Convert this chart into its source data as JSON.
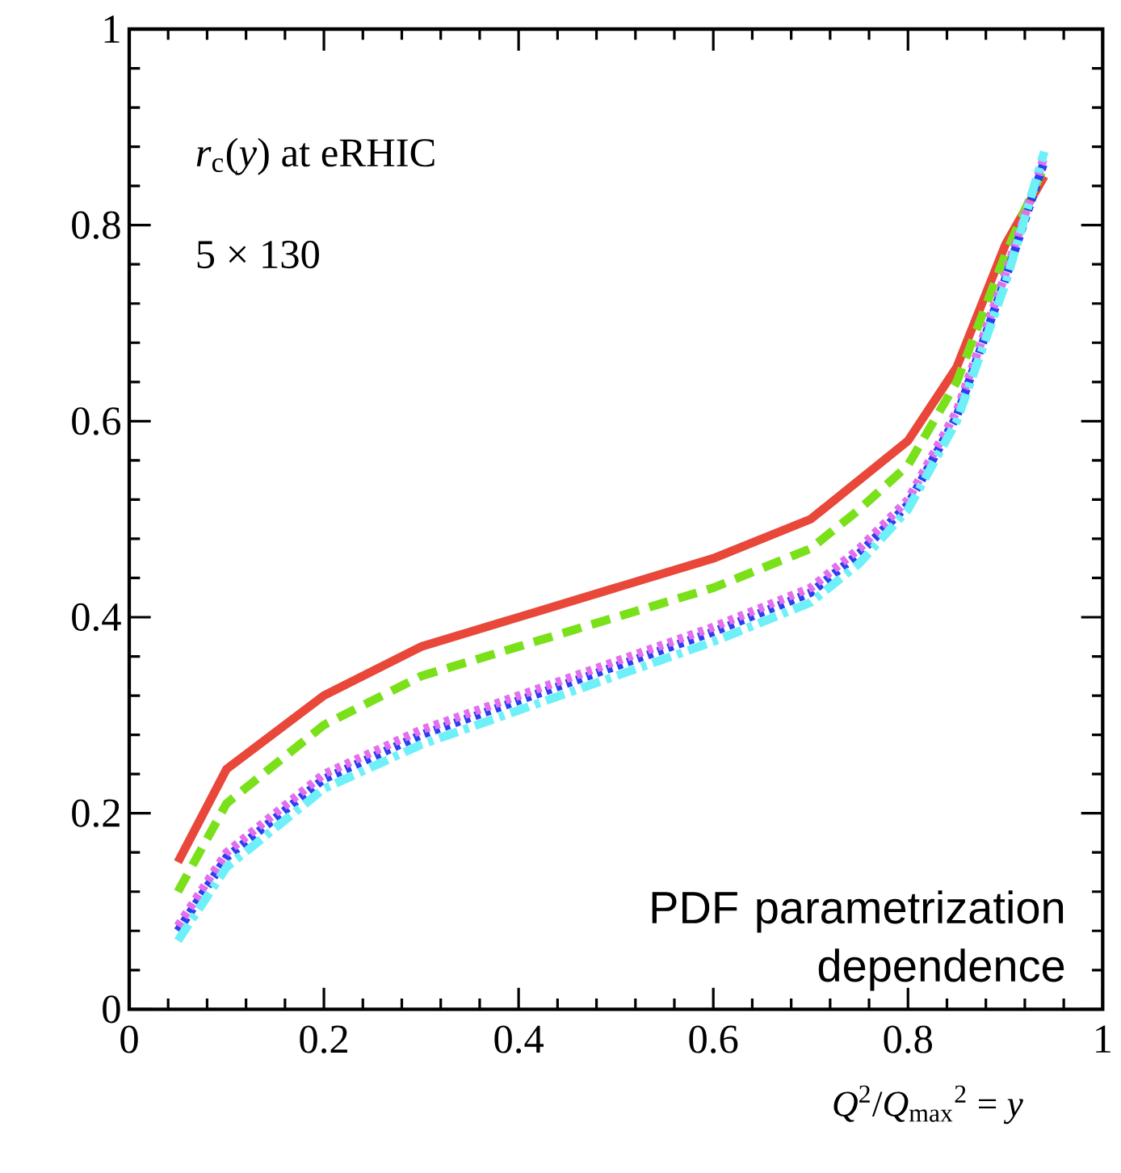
{
  "chart_data": {
    "type": "line",
    "xlabel": "*Q*$^{2}$/*Q*$_{max}$$^{2}$ = *y*",
    "annotations": [
      "*r*$_{c}$(*y*) at eRHIC",
      "5 × 130",
      "PDF parametrization dependence"
    ],
    "x": [
      0.05,
      0.1,
      0.2,
      0.3,
      0.4,
      0.5,
      0.6,
      0.7,
      0.75,
      0.8,
      0.85,
      0.9,
      0.94
    ],
    "xlim": [
      0,
      1
    ],
    "ylim": [
      0,
      1
    ],
    "xticks": [
      0,
      0.2,
      0.4,
      0.6,
      0.8,
      1
    ],
    "yticks": [
      0,
      0.2,
      0.4,
      0.6,
      0.8,
      1
    ],
    "series": [
      {
        "color": "#e8473a",
        "line_style": "solid",
        "values": [
          0.15,
          0.245,
          0.32,
          0.37,
          0.4,
          0.43,
          0.46,
          0.5,
          0.54,
          0.58,
          0.655,
          0.78,
          0.85
        ]
      },
      {
        "color": "#7ae01a",
        "line_style": "dashed",
        "values": [
          0.12,
          0.21,
          0.29,
          0.34,
          0.37,
          0.4,
          0.43,
          0.47,
          0.51,
          0.555,
          0.64,
          0.77,
          0.86
        ]
      },
      {
        "color": "#2b3ff0",
        "line_style": "dotted",
        "values": [
          0.08,
          0.155,
          0.235,
          0.28,
          0.315,
          0.35,
          0.385,
          0.425,
          0.465,
          0.515,
          0.605,
          0.745,
          0.865
        ]
      },
      {
        "color": "#e46ef0",
        "line_style": "dotted",
        "values": [
          0.085,
          0.16,
          0.24,
          0.285,
          0.32,
          0.355,
          0.39,
          0.43,
          0.47,
          0.52,
          0.61,
          0.75,
          0.87
        ]
      },
      {
        "color": "#6ef0f8",
        "line_style": "dashdot",
        "values": [
          0.07,
          0.145,
          0.225,
          0.27,
          0.305,
          0.34,
          0.375,
          0.415,
          0.455,
          0.51,
          0.6,
          0.74,
          0.875
        ]
      }
    ]
  }
}
